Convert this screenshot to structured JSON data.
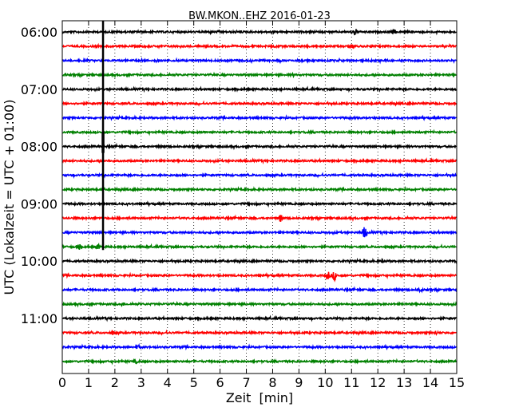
{
  "chart_data": {
    "type": "line",
    "title": "BW.MKON..EHZ 2016-01-23",
    "xlabel": "Zeit  [min]",
    "ylabel": "UTC (Lokalzeit = UTC + 01:00)",
    "xlim": [
      0,
      15
    ],
    "x_ticks": [
      "0",
      "1",
      "2",
      "3",
      "4",
      "5",
      "6",
      "7",
      "8",
      "9",
      "10",
      "11",
      "12",
      "13",
      "14",
      "15"
    ],
    "y_tick_labels": [
      "06:00",
      "07:00",
      "08:00",
      "09:00",
      "10:00",
      "11:00"
    ],
    "y_tick_trace_index": [
      0,
      4,
      8,
      12,
      16,
      20
    ],
    "grid": "vertical dotted",
    "trace_count": 24,
    "trace_colors": [
      "#000000",
      "#ff0000",
      "#0000ff",
      "#008000"
    ],
    "events": [
      {
        "trace": 0,
        "minute": 11.1,
        "amp": 0.45
      },
      {
        "trace": 0,
        "minute": 12.6,
        "amp": 0.3
      },
      {
        "trace": 1,
        "minute": 11.0,
        "amp": 0.2
      },
      {
        "trace": 3,
        "minute": 8.8,
        "amp": 0.15
      },
      {
        "trace": 13,
        "minute": 8.3,
        "amp": 0.5
      },
      {
        "trace": 14,
        "minute": 11.5,
        "amp": 0.8
      },
      {
        "trace": 15,
        "minute": 0.65,
        "amp": 0.3
      },
      {
        "trace": 15,
        "minute": 1.35,
        "amp": 0.3
      },
      {
        "trace": 16,
        "minute": 12.2,
        "amp": 0.2
      },
      {
        "trace": 17,
        "minute": 10.1,
        "amp": 0.55
      },
      {
        "trace": 17,
        "minute": 10.35,
        "amp": 0.6
      },
      {
        "trace": 18,
        "minute": 13.6,
        "amp": 0.3
      },
      {
        "trace": 19,
        "minute": 2.3,
        "amp": 0.2
      },
      {
        "trace": 21,
        "minute": 1.9,
        "amp": 0.2
      },
      {
        "trace": 21,
        "minute": 14.2,
        "amp": 0.25
      },
      {
        "trace": 22,
        "minute": 2.9,
        "amp": 0.2
      },
      {
        "trace": 23,
        "minute": 2.8,
        "amp": 0.2
      }
    ],
    "spike": {
      "minute": 1.55,
      "from_trace": -1,
      "to_trace": 15
    }
  }
}
